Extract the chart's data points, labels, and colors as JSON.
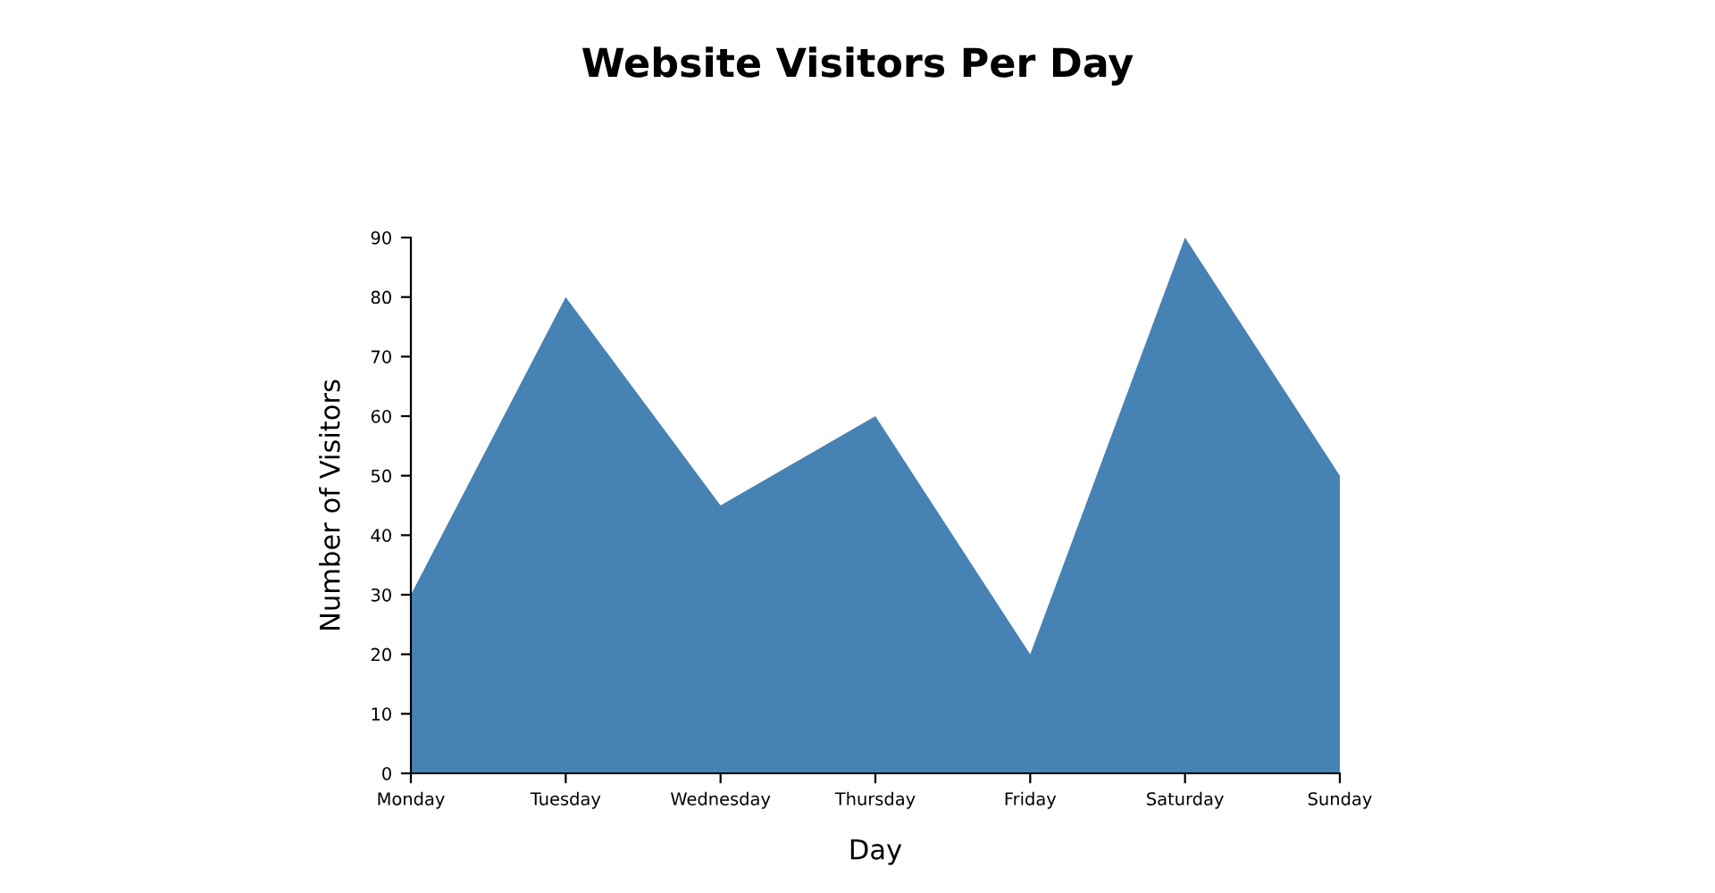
{
  "chart_data": {
    "type": "area",
    "title": "Website Visitors Per Day",
    "xlabel": "Day",
    "ylabel": "Number of Visitors",
    "categories": [
      "Monday",
      "Tuesday",
      "Wednesday",
      "Thursday",
      "Friday",
      "Saturday",
      "Sunday"
    ],
    "series": [
      {
        "color": "#4682b4",
        "values": [
          30,
          80,
          45,
          60,
          20,
          90,
          50
        ]
      }
    ],
    "ylim": [
      0,
      90
    ],
    "yticks": [
      0,
      10,
      20,
      30,
      40,
      50,
      60,
      70,
      80,
      90
    ],
    "grid": false
  }
}
